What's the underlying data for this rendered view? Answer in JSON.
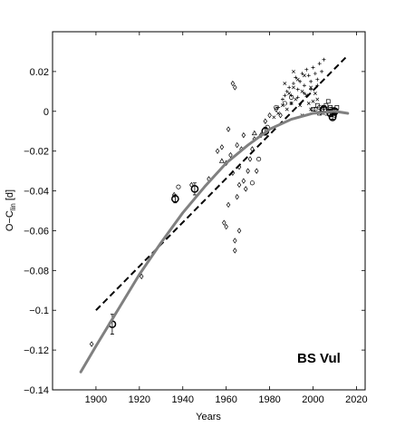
{
  "chart_data": {
    "type": "scatter",
    "title": "",
    "xlabel": "Years",
    "ylabel": "O−C",
    "ylabel_subscript": "lin",
    "ylabel_unit": "[d]",
    "annotation": "BS Vul",
    "xlim": [
      1880,
      2024
    ],
    "ylim": [
      -0.14,
      0.04
    ],
    "xticks": [
      1900,
      1920,
      1940,
      1960,
      1980,
      2000,
      2020
    ],
    "yticks": [
      -0.14,
      -0.12,
      -0.1,
      -0.08,
      -0.06,
      -0.04,
      -0.02,
      0,
      0.02
    ],
    "ytick_labels": [
      "−0.14",
      "−0.12",
      "−0.1",
      "−0.08",
      "−0.06",
      "−0.04",
      "−0.02",
      "0",
      "0.02"
    ],
    "grid": false,
    "series": [
      {
        "marker": "diamond",
        "x": [
          1898,
          1921,
          1936,
          1944,
          1952,
          1956,
          1958,
          1959,
          1960,
          1960,
          1961,
          1961,
          1962,
          1963,
          1963,
          1964,
          1964,
          1964,
          1965,
          1965,
          1966,
          1966,
          1966,
          1967,
          1968,
          1968,
          1969,
          1970,
          1971,
          1972,
          1973,
          1974,
          1976,
          1978,
          1980,
          1983,
          1985
        ],
        "y": [
          -0.117,
          -0.083,
          -0.042,
          -0.037,
          -0.034,
          -0.02,
          -0.018,
          -0.056,
          -0.026,
          -0.058,
          -0.009,
          -0.047,
          -0.022,
          0.014,
          -0.031,
          0.012,
          -0.065,
          -0.07,
          -0.017,
          -0.043,
          -0.028,
          -0.037,
          -0.06,
          -0.019,
          -0.012,
          -0.035,
          -0.039,
          -0.03,
          -0.024,
          -0.019,
          -0.014,
          -0.03,
          -0.012,
          -0.005,
          -0.002,
          0.001,
          -0.002
        ]
      },
      {
        "marker": "circle",
        "x": [
          1938,
          1972,
          1975,
          1979,
          1983,
          1987,
          1990,
          2001,
          2003,
          2006,
          2008,
          2010
        ],
        "y": [
          -0.038,
          -0.036,
          -0.024,
          -0.008,
          0.002,
          0.004,
          0.007,
          0.001,
          0.002,
          -0.001,
          0.001,
          -0.002
        ]
      },
      {
        "marker": "triangle",
        "x": [
          1958,
          1973
        ],
        "y": [
          -0.025,
          -0.011
        ]
      },
      {
        "marker": "square",
        "x": [
          2000,
          2002,
          2003,
          2004,
          2005,
          2006,
          2007,
          2007,
          2008,
          2009,
          2009,
          2010,
          2011
        ],
        "y": [
          0.001,
          0.003,
          -0.001,
          0.001,
          0.002,
          0.003,
          0.0,
          0.005,
          0.002,
          0.001,
          -0.001,
          0.0,
          0.002
        ]
      },
      {
        "marker": "plus",
        "x": [
          1984,
          1986,
          1987,
          1988,
          1989,
          1990,
          1991,
          1992,
          1993,
          1994,
          1995,
          1996,
          1997,
          1998,
          1999,
          2000,
          2001,
          2002,
          2003,
          2004,
          2005,
          1990,
          1993,
          1996,
          1999,
          2002
        ],
        "y": [
          0.002,
          0.006,
          0.008,
          0.01,
          0.012,
          0.008,
          0.014,
          0.017,
          0.011,
          0.015,
          0.019,
          0.013,
          0.021,
          0.018,
          0.015,
          0.022,
          0.019,
          0.016,
          0.024,
          0.02,
          0.026,
          0.004,
          0.007,
          0.009,
          0.011,
          0.013
        ]
      },
      {
        "marker": "x",
        "x": [
          1982,
          1984,
          1986,
          1988,
          1989,
          1990,
          1991,
          1992,
          1993,
          1994,
          1995,
          1996,
          1997,
          1998,
          1999,
          2000,
          2001,
          1987,
          1991,
          1995,
          1999,
          2002,
          2004
        ],
        "y": [
          -0.003,
          -0.001,
          0.003,
          0.001,
          0.009,
          0.004,
          0.012,
          0.006,
          0.016,
          0.003,
          0.01,
          0.018,
          0.008,
          0.004,
          0.012,
          0.005,
          0.009,
          0.014,
          0.02,
          -0.002,
          0.001,
          0.006,
          -0.001
        ]
      },
      {
        "marker": "big-circle-errorbar",
        "x": [
          1907.5,
          1936.5,
          1945.5,
          1978,
          2005,
          2008,
          2009,
          2010
        ],
        "y": [
          -0.107,
          -0.044,
          -0.039,
          -0.01,
          0.001,
          -0.001,
          -0.003,
          0.0
        ],
        "yerr": [
          0.005,
          0.002,
          0.003,
          0.002,
          0.001,
          0.001,
          0.001,
          0.001
        ]
      },
      {
        "marker": "dashed-line",
        "x": [
          1900,
          2015
        ],
        "y": [
          -0.1,
          0.027
        ]
      },
      {
        "marker": "solid-curve",
        "x": [
          1893,
          1900,
          1910,
          1920,
          1930,
          1940,
          1950,
          1960,
          1970,
          1980,
          1990,
          2000,
          2010,
          2016
        ],
        "y": [
          -0.131,
          -0.118,
          -0.1,
          -0.082,
          -0.066,
          -0.051,
          -0.038,
          -0.026,
          -0.017,
          -0.009,
          -0.004,
          -0.001,
          0.0,
          -0.001
        ]
      }
    ]
  }
}
